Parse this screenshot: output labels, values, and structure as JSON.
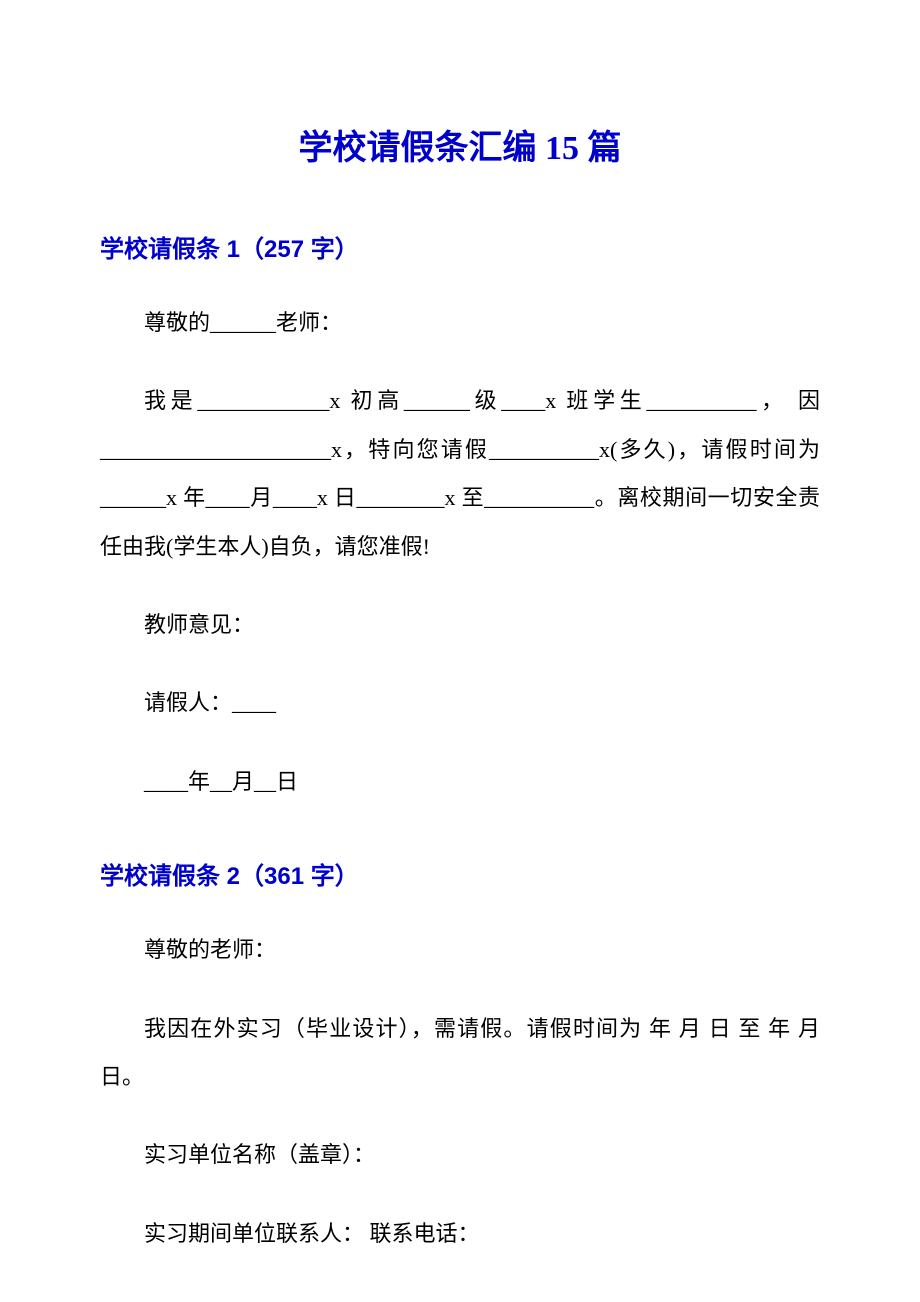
{
  "title": "学校请假条汇编 15 篇",
  "section1": {
    "heading": "学校请假条 1（257 字）",
    "p1": "尊敬的______老师：",
    "p2": "我是____________x 初高______级____x 班学生__________， 因_____________________x，特向您请假__________x(多久)，请假时间为______x 年____月____x 日________x 至__________。离校期间一切安全责任由我(学生本人)自负，请您准假!",
    "p3": "教师意见：",
    "p4": "请假人：____",
    "p5": "____年__月__日"
  },
  "section2": {
    "heading": "学校请假条 2（361 字）",
    "p1": "尊敬的老师：",
    "p2": "我因在外实习（毕业设计），需请假。请假时间为 年 月 日 至 年 月 日。",
    "p3": "实习单位名称（盖章）：",
    "p4": "实习期间单位联系人：  联系电话："
  }
}
